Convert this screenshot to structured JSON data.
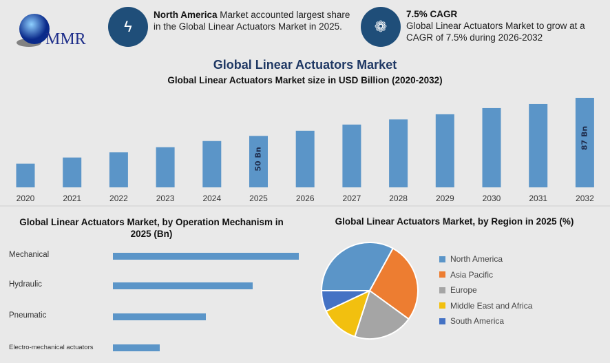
{
  "logo": {
    "text": "MMR"
  },
  "info_cards": [
    {
      "icon": "lightning-icon",
      "bold": "North America",
      "text": " Market accounted largest share in the Global Linear Actuators Market in 2025."
    },
    {
      "icon": "flame-icon",
      "bold": "7.5% CAGR",
      "text": "Global Linear Actuators Market to grow at a CAGR of 7.5% during 2026-2032"
    }
  ],
  "main_title": "Global Linear Actuators Market",
  "colors": {
    "bar": "#5b95c8",
    "accent": "#1f4e79",
    "title": "#1f3864"
  },
  "chart_data": [
    {
      "type": "bar",
      "title": "Global Linear Actuators Market size in USD Billion (2020-2032)",
      "categories": [
        "2020",
        "2021",
        "2022",
        "2023",
        "2024",
        "2025",
        "2026",
        "2027",
        "2028",
        "2029",
        "2030",
        "2031",
        "2032"
      ],
      "values": [
        23,
        29,
        34,
        39,
        45,
        50,
        55,
        61,
        66,
        71,
        77,
        81,
        87
      ],
      "data_labels": {
        "2025": "50 Bn",
        "2032": "87 Bn"
      },
      "ylim": [
        0,
        90
      ],
      "grid": false
    },
    {
      "type": "bar",
      "orientation": "horizontal",
      "title": "Global Linear Actuators Market, by Operation Mechanism in 2025 (Bn)",
      "categories": [
        "Mechanical",
        "Hydraulic",
        "Pneumatic",
        "Electro-mechanical actuators"
      ],
      "values": [
        4,
        3,
        2,
        1
      ],
      "grid": false
    },
    {
      "type": "pie",
      "title": "Global Linear Actuators Market, by Region in 2025 (%)",
      "labels": [
        "North America",
        "Asia Pacific",
        "Europe",
        "Middle East and Africa",
        "South America"
      ],
      "values": [
        33,
        27,
        20,
        13,
        7
      ],
      "colors": [
        "#5b95c8",
        "#ed7d31",
        "#a5a5a5",
        "#f2c00f",
        "#4472c4"
      ],
      "legend": "right"
    }
  ]
}
